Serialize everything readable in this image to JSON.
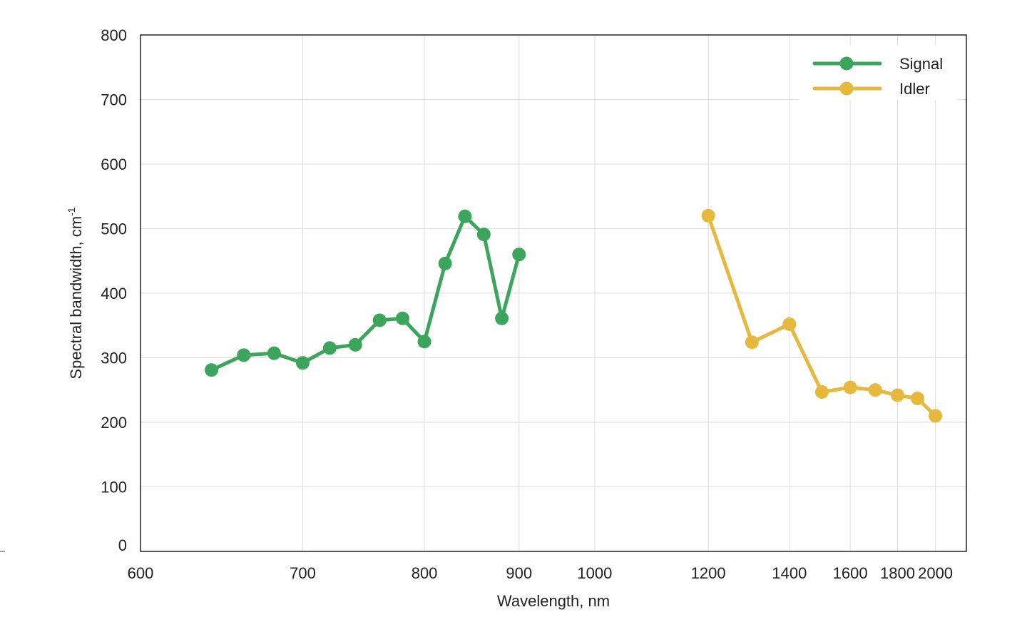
{
  "chart_data": {
    "type": "line",
    "title": "",
    "xlabel": "Wavelength, nm",
    "ylabel": "Spectral bandwidth, cm",
    "ylabel_sup": "-1",
    "x_scale": "reciprocal",
    "xlim": [
      600,
      2200
    ],
    "ylim": [
      0,
      800
    ],
    "x_ticks": [
      600,
      700,
      800,
      900,
      1000,
      1200,
      1400,
      1600,
      1800,
      2000
    ],
    "y_ticks": [
      0,
      100,
      200,
      300,
      400,
      500,
      600,
      700,
      800
    ],
    "grid": true,
    "legend_position": "top-right",
    "series": [
      {
        "name": "Signal",
        "color": "#3aa55b",
        "x": [
          640,
          660,
          680,
          700,
          720,
          740,
          760,
          780,
          800,
          820,
          840,
          860,
          880,
          900
        ],
        "y": [
          281,
          304,
          307,
          292,
          315,
          320,
          358,
          361,
          325,
          446,
          519,
          491,
          361,
          460
        ]
      },
      {
        "name": "Idler",
        "color": "#e6b83c",
        "x": [
          1200,
          1300,
          1400,
          1500,
          1600,
          1700,
          1800,
          1900,
          2000
        ],
        "y": [
          520,
          324,
          352,
          247,
          254,
          250,
          242,
          237,
          210
        ]
      }
    ]
  }
}
